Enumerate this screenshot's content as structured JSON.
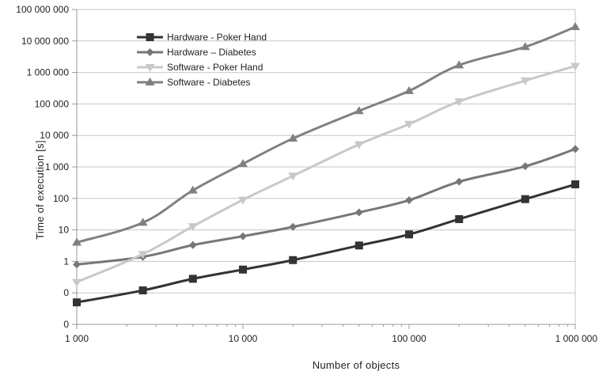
{
  "chart_data": {
    "type": "line",
    "xlabel": "Number  of objects",
    "ylabel": "Time of execution [s]",
    "x_scale": "log",
    "y_scale": "log",
    "x_ticks": [
      {
        "value": 1000,
        "label": "1 000"
      },
      {
        "value": 10000,
        "label": "10 000"
      },
      {
        "value": 100000,
        "label": "100 000"
      },
      {
        "value": 1000000,
        "label": "1 000 000"
      }
    ],
    "y_ticks": [
      {
        "value": 0.01,
        "label": "0"
      },
      {
        "value": 0.1,
        "label": "0"
      },
      {
        "value": 1,
        "label": "1"
      },
      {
        "value": 10,
        "label": "10"
      },
      {
        "value": 100,
        "label": "100"
      },
      {
        "value": 1000,
        "label": "1 000"
      },
      {
        "value": 10000,
        "label": "10 000"
      },
      {
        "value": 100000,
        "label": "100 000"
      },
      {
        "value": 1000000,
        "label": "1 000 000"
      },
      {
        "value": 10000000,
        "label": "10 000 000"
      },
      {
        "value": 100000000,
        "label": "100 000 000"
      }
    ],
    "xlim": [
      1000,
      1000000
    ],
    "ylim": [
      0.01,
      100000000
    ],
    "grid": "horizontal",
    "legend_position": "top-left",
    "x": [
      1000,
      2500,
      5000,
      10000,
      20000,
      50000,
      100000,
      200000,
      500000,
      1000000
    ],
    "series": [
      {
        "name": "Hardware - Poker Hand",
        "color": "#333333",
        "marker": "square",
        "values": [
          0.05,
          0.12,
          0.28,
          0.55,
          1.1,
          3.2,
          7.2,
          22,
          95,
          280
        ]
      },
      {
        "name": "Hardware – Diabetes",
        "color": "#777777",
        "marker": "diamond",
        "values": [
          0.8,
          1.4,
          3.3,
          6.3,
          12.5,
          36,
          88,
          340,
          1050,
          3700
        ]
      },
      {
        "name": "Software - Poker Hand",
        "color": "#c8c8c8",
        "marker": "triangle-down",
        "values": [
          0.22,
          1.7,
          13,
          90,
          520,
          5200,
          23000,
          120000,
          550000,
          1600000
        ]
      },
      {
        "name": "Software - Diabetes",
        "color": "#808080",
        "marker": "triangle-up",
        "values": [
          4,
          17,
          180,
          1250,
          8000,
          60000,
          260000,
          1700000,
          6500000,
          28000000
        ]
      }
    ]
  }
}
